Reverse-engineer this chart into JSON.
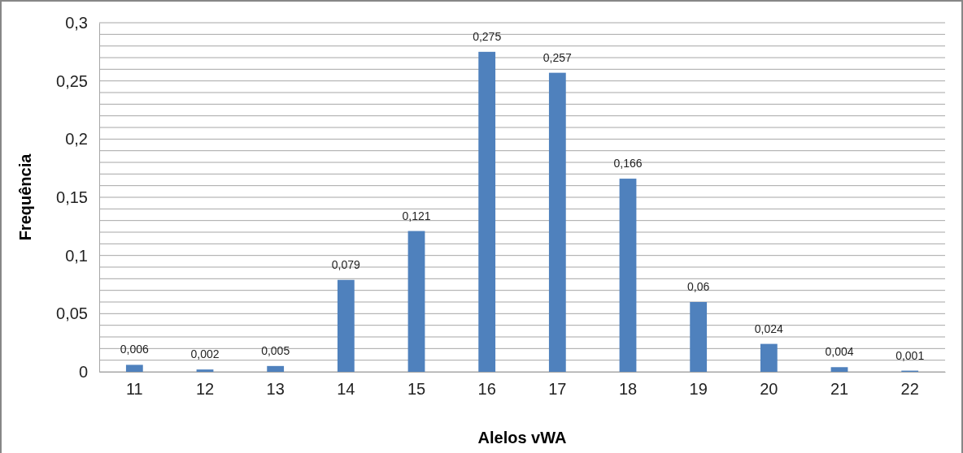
{
  "chart_data": {
    "type": "bar",
    "xlabel": "Alelos vWA",
    "ylabel": "Frequência",
    "categories": [
      "11",
      "12",
      "13",
      "14",
      "15",
      "16",
      "17",
      "18",
      "19",
      "20",
      "21",
      "22"
    ],
    "values": [
      0.006,
      0.002,
      0.005,
      0.079,
      0.121,
      0.275,
      0.257,
      0.166,
      0.06,
      0.024,
      0.004,
      0.001
    ],
    "value_labels": [
      "0,006",
      "0,002",
      "0,005",
      "0,079",
      "0,121",
      "0,275",
      "0,257",
      "0,166",
      "0,06",
      "0,024",
      "0,004",
      "0,001"
    ],
    "color": "#4f81bd",
    "ylim": [
      0,
      0.3
    ],
    "yticks": [
      {
        "value": 0,
        "label": "0"
      },
      {
        "value": 0.01,
        "label": null
      },
      {
        "value": 0.02,
        "label": null
      },
      {
        "value": 0.03,
        "label": null
      },
      {
        "value": 0.04,
        "label": null
      },
      {
        "value": 0.05,
        "label": "0,05"
      },
      {
        "value": 0.06,
        "label": null
      },
      {
        "value": 0.07,
        "label": null
      },
      {
        "value": 0.08,
        "label": null
      },
      {
        "value": 0.09,
        "label": null
      },
      {
        "value": 0.1,
        "label": "0,1"
      },
      {
        "value": 0.11,
        "label": null
      },
      {
        "value": 0.12,
        "label": null
      },
      {
        "value": 0.13,
        "label": null
      },
      {
        "value": 0.14,
        "label": null
      },
      {
        "value": 0.15,
        "label": "0,15"
      },
      {
        "value": 0.16,
        "label": null
      },
      {
        "value": 0.17,
        "label": null
      },
      {
        "value": 0.18,
        "label": null
      },
      {
        "value": 0.19,
        "label": null
      },
      {
        "value": 0.2,
        "label": "0,2"
      },
      {
        "value": 0.21,
        "label": null
      },
      {
        "value": 0.22,
        "label": null
      },
      {
        "value": 0.23,
        "label": null
      },
      {
        "value": 0.24,
        "label": null
      },
      {
        "value": 0.25,
        "label": "0,25"
      },
      {
        "value": 0.26,
        "label": null
      },
      {
        "value": 0.27,
        "label": null
      },
      {
        "value": 0.28,
        "label": null
      },
      {
        "value": 0.29,
        "label": null
      },
      {
        "value": 0.3,
        "label": "0,3"
      }
    ],
    "grid": "y"
  }
}
